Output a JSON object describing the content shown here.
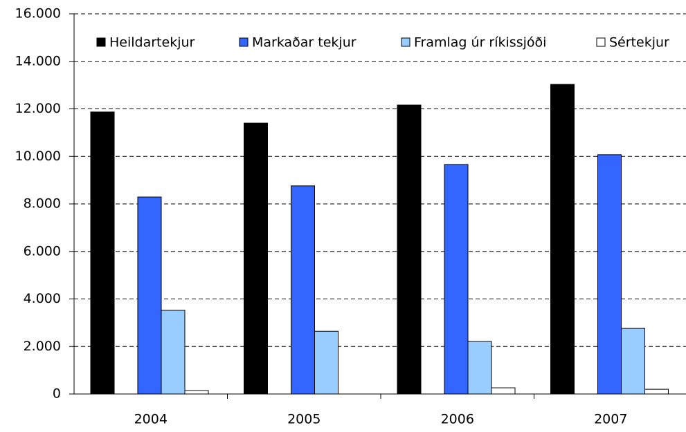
{
  "chart_data": {
    "type": "bar",
    "categories": [
      "2004",
      "2005",
      "2006",
      "2007"
    ],
    "series": [
      {
        "name": "Heildartekjur",
        "color": "#000000",
        "values": [
          11870,
          11400,
          12160,
          13030
        ]
      },
      {
        "name": "Markaðar tekjur",
        "color": "#3366ff",
        "values": [
          8290,
          8760,
          9660,
          10070
        ]
      },
      {
        "name": "Framlag úr ríkissjóði",
        "color": "#99ccff",
        "values": [
          3520,
          2640,
          2210,
          2760
        ]
      },
      {
        "name": "Sértekjur",
        "color": "#ffffff",
        "values": [
          145,
          null,
          260,
          200
        ]
      }
    ],
    "ylim": [
      0,
      16000
    ],
    "yticks": [
      0,
      {
        "value": 2000,
        "label": "2.000"
      },
      {
        "value": 4000,
        "label": "4.000"
      },
      {
        "value": 6000,
        "label": "6.000"
      },
      {
        "value": 8000,
        "label": "8.000"
      },
      {
        "value": 10000,
        "label": "10.000"
      },
      {
        "value": 12000,
        "label": "12.000"
      },
      {
        "value": 14000,
        "label": "14.000"
      },
      {
        "value": 16000,
        "label": "16.000"
      }
    ],
    "grid": true,
    "legend": "top"
  }
}
